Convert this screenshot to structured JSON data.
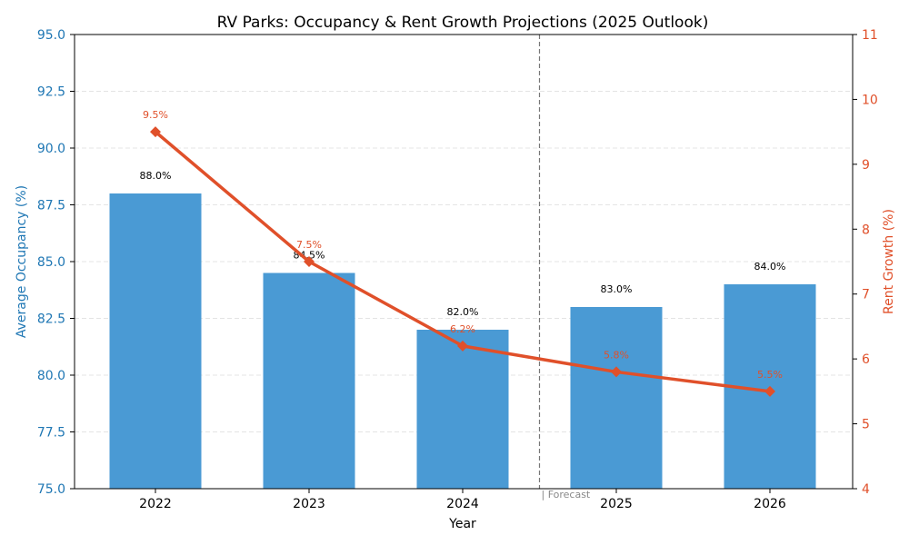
{
  "chart_data": {
    "type": "bar",
    "title": "RV Parks: Occupancy & Rent Growth Projections (2025 Outlook)",
    "xlabel": "Year",
    "ylabel": "Average Occupancy (%)",
    "y2label": "Rent Growth (%)",
    "categories": [
      "2022",
      "2023",
      "2024",
      "2025",
      "2026"
    ],
    "series": [
      {
        "name": "Average Occupancy (%)",
        "type": "bar",
        "axis": "left",
        "color": "#4a9ad4",
        "values": [
          88.0,
          84.5,
          82.0,
          83.0,
          84.0
        ],
        "labels": [
          "88.0%",
          "84.5%",
          "82.0%",
          "83.0%",
          "84.0%"
        ]
      },
      {
        "name": "Rent Growth (%)",
        "type": "line",
        "axis": "right",
        "color": "#e0502a",
        "marker": "diamond",
        "values": [
          9.5,
          7.5,
          6.2,
          5.8,
          5.5
        ],
        "labels": [
          "9.5%",
          "7.5%",
          "6.2%",
          "5.8%",
          "5.5%"
        ]
      }
    ],
    "ylim": [
      75,
      95
    ],
    "y2lim": [
      4,
      11
    ],
    "yticks": [
      "75.0",
      "77.5",
      "80.0",
      "82.5",
      "85.0",
      "87.5",
      "90.0",
      "92.5",
      "95.0"
    ],
    "y2ticks": [
      "4",
      "5",
      "6",
      "7",
      "8",
      "9",
      "10",
      "11"
    ],
    "grid": true,
    "annotation": {
      "text": "| Forecast",
      "between": [
        "2024",
        "2025"
      ]
    },
    "colors": {
      "left_axis": "#1f77b4",
      "right_axis": "#e0502a"
    }
  }
}
